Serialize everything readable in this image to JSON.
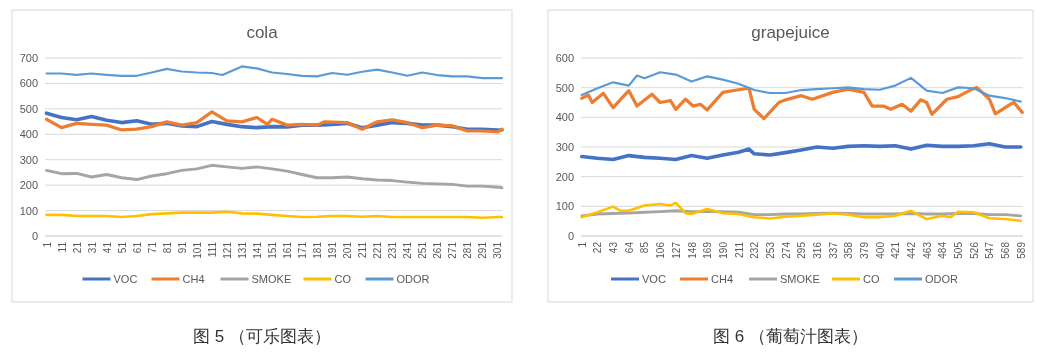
{
  "chart_data": [
    {
      "type": "line",
      "title": "cola",
      "xlim": [
        0,
        304
      ],
      "xticks": [
        1,
        11,
        21,
        31,
        41,
        51,
        61,
        71,
        81,
        91,
        101,
        111,
        121,
        131,
        141,
        151,
        161,
        171,
        181,
        191,
        201,
        211,
        221,
        231,
        241,
        251,
        261,
        271,
        281,
        291,
        301
      ],
      "ylim": [
        0,
        700
      ],
      "yticks": [
        0,
        100,
        200,
        300,
        400,
        500,
        600,
        700
      ],
      "grid": "y",
      "legend": "bottom",
      "annotations": [
        "图 5 （可乐图表）"
      ],
      "series": [
        {
          "name": "VOC",
          "color": "#4472c4",
          "x": [
            1,
            11,
            21,
            31,
            41,
            51,
            61,
            71,
            81,
            91,
            101,
            111,
            121,
            131,
            141,
            151,
            161,
            171,
            181,
            191,
            201,
            211,
            221,
            231,
            241,
            251,
            261,
            271,
            281,
            291,
            301,
            304
          ],
          "values": [
            483,
            466,
            457,
            470,
            455,
            446,
            453,
            439,
            443,
            433,
            430,
            450,
            439,
            430,
            426,
            430,
            429,
            436,
            436,
            439,
            443,
            426,
            436,
            446,
            443,
            436,
            436,
            430,
            420,
            420,
            417,
            417
          ]
        },
        {
          "name": "CH4",
          "color": "#ed7d31",
          "x": [
            1,
            11,
            21,
            31,
            41,
            51,
            61,
            71,
            81,
            91,
            101,
            111,
            121,
            131,
            141,
            148,
            151,
            161,
            171,
            181,
            186,
            201,
            211,
            221,
            231,
            241,
            251,
            261,
            271,
            281,
            291,
            301,
            304
          ],
          "values": [
            459,
            426,
            443,
            439,
            436,
            417,
            420,
            430,
            449,
            436,
            446,
            488,
            453,
            449,
            466,
            439,
            459,
            436,
            439,
            436,
            449,
            446,
            420,
            449,
            457,
            446,
            426,
            436,
            433,
            413,
            413,
            409,
            420
          ]
        },
        {
          "name": "SMOKE",
          "color": "#a5a5a5",
          "x": [
            1,
            11,
            21,
            31,
            41,
            51,
            61,
            71,
            81,
            91,
            101,
            111,
            121,
            131,
            141,
            151,
            161,
            171,
            181,
            191,
            201,
            211,
            221,
            231,
            241,
            251,
            261,
            271,
            281,
            291,
            301,
            304
          ],
          "values": [
            258,
            245,
            246,
            232,
            242,
            229,
            222,
            236,
            245,
            258,
            264,
            278,
            272,
            266,
            272,
            264,
            255,
            242,
            229,
            229,
            232,
            225,
            220,
            218,
            212,
            207,
            205,
            203,
            196,
            196,
            192,
            190
          ]
        },
        {
          "name": "CO",
          "color": "#ffc000",
          "x": [
            1,
            11,
            21,
            31,
            41,
            51,
            61,
            71,
            81,
            91,
            101,
            111,
            121,
            131,
            141,
            151,
            161,
            171,
            181,
            191,
            201,
            211,
            221,
            231,
            241,
            251,
            261,
            271,
            281,
            291,
            301,
            304
          ],
          "values": [
            83,
            83,
            79,
            79,
            79,
            75,
            79,
            86,
            89,
            92,
            92,
            92,
            95,
            89,
            88,
            83,
            79,
            75,
            76,
            79,
            79,
            76,
            79,
            75,
            75,
            75,
            75,
            75,
            75,
            72,
            75,
            75
          ]
        },
        {
          "name": "ODOR",
          "color": "#5b9bd5",
          "x": [
            1,
            11,
            21,
            31,
            41,
            51,
            61,
            71,
            81,
            91,
            101,
            111,
            118,
            131,
            141,
            151,
            161,
            171,
            181,
            191,
            201,
            211,
            221,
            231,
            241,
            251,
            261,
            271,
            281,
            291,
            301,
            304
          ],
          "values": [
            639,
            639,
            634,
            639,
            634,
            630,
            630,
            643,
            657,
            647,
            643,
            641,
            633,
            667,
            659,
            643,
            637,
            630,
            628,
            641,
            634,
            646,
            654,
            643,
            630,
            643,
            633,
            628,
            628,
            621,
            621,
            621
          ]
        }
      ]
    },
    {
      "type": "line",
      "title": "grapejuice",
      "xlim": [
        0,
        592
      ],
      "xticks": [
        1,
        22,
        43,
        64,
        85,
        106,
        127,
        148,
        169,
        190,
        211,
        232,
        253,
        274,
        295,
        316,
        337,
        358,
        379,
        400,
        421,
        442,
        463,
        484,
        505,
        526,
        547,
        568,
        589
      ],
      "ylim": [
        0,
        600
      ],
      "yticks": [
        0,
        100,
        200,
        300,
        400,
        500,
        600
      ],
      "grid": "y",
      "legend": "bottom",
      "annotations": [
        "图 6 （葡萄汁图表）"
      ],
      "series": [
        {
          "name": "VOC",
          "color": "#4472c4",
          "x": [
            1,
            22,
            43,
            64,
            85,
            106,
            127,
            148,
            169,
            190,
            211,
            225,
            232,
            253,
            274,
            295,
            316,
            337,
            358,
            379,
            400,
            421,
            442,
            463,
            484,
            505,
            526,
            547,
            568,
            589
          ],
          "values": [
            268,
            262,
            258,
            271,
            265,
            262,
            258,
            271,
            262,
            273,
            282,
            293,
            277,
            273,
            281,
            290,
            300,
            296,
            302,
            304,
            302,
            304,
            293,
            306,
            302,
            302,
            304,
            311,
            300,
            300
          ]
        },
        {
          "name": "CH4",
          "color": "#ed7d31",
          "x": [
            1,
            10,
            15,
            30,
            43,
            64,
            75,
            95,
            106,
            120,
            127,
            140,
            150,
            160,
            169,
            190,
            211,
            225,
            232,
            245,
            265,
            274,
            295,
            310,
            337,
            358,
            379,
            390,
            405,
            415,
            430,
            442,
            455,
            463,
            470,
            490,
            505,
            520,
            530,
            547,
            555,
            575,
            580,
            591
          ],
          "values": [
            464,
            475,
            450,
            481,
            433,
            490,
            438,
            478,
            450,
            456,
            427,
            461,
            438,
            444,
            425,
            484,
            493,
            498,
            427,
            396,
            450,
            459,
            473,
            461,
            484,
            495,
            484,
            438,
            438,
            427,
            444,
            421,
            459,
            450,
            410,
            461,
            470,
            490,
            501,
            461,
            412,
            444,
            450,
            416
          ]
        },
        {
          "name": "SMOKE",
          "color": "#a5a5a5",
          "x": [
            1,
            22,
            43,
            64,
            85,
            106,
            127,
            148,
            169,
            190,
            211,
            232,
            253,
            274,
            295,
            316,
            337,
            358,
            379,
            400,
            421,
            442,
            463,
            484,
            505,
            526,
            547,
            568,
            589
          ],
          "values": [
            68,
            74,
            76,
            77,
            80,
            82,
            85,
            82,
            83,
            82,
            80,
            72,
            72,
            74,
            74,
            76,
            77,
            76,
            74,
            74,
            74,
            76,
            74,
            74,
            76,
            76,
            72,
            72,
            68
          ]
        },
        {
          "name": "CO",
          "color": "#ffc000",
          "x": [
            1,
            22,
            43,
            53,
            64,
            85,
            106,
            120,
            127,
            140,
            148,
            169,
            190,
            211,
            232,
            253,
            274,
            295,
            316,
            337,
            358,
            379,
            400,
            421,
            442,
            463,
            484,
            495,
            505,
            526,
            547,
            568,
            589
          ],
          "values": [
            63,
            80,
            99,
            85,
            85,
            103,
            108,
            103,
            112,
            77,
            74,
            91,
            77,
            74,
            63,
            59,
            65,
            68,
            72,
            76,
            72,
            63,
            63,
            68,
            85,
            57,
            68,
            63,
            82,
            80,
            60,
            57,
            51
          ]
        },
        {
          "name": "ODOR",
          "color": "#5b9bd5",
          "x": [
            1,
            22,
            43,
            64,
            75,
            85,
            106,
            127,
            148,
            169,
            190,
            211,
            232,
            253,
            274,
            295,
            316,
            337,
            358,
            379,
            400,
            421,
            442,
            463,
            484,
            505,
            526,
            547,
            568,
            589
          ],
          "values": [
            475,
            498,
            518,
            507,
            541,
            532,
            552,
            544,
            521,
            538,
            527,
            513,
            492,
            482,
            482,
            492,
            495,
            498,
            501,
            495,
            493,
            507,
            533,
            490,
            482,
            501,
            498,
            473,
            465,
            453
          ]
        }
      ]
    }
  ]
}
